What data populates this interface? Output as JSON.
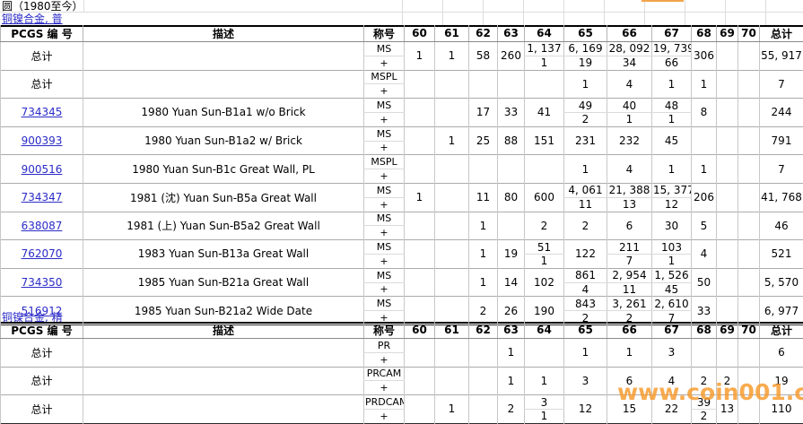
{
  "title": "圆（1980至今）",
  "watermark": "www.coin001.com",
  "colors": {
    "link": "#2b2bc8",
    "watermark": "#f69828",
    "grid": "#c8c8c8",
    "border": "#000000"
  },
  "columns": {
    "pcgs": "PCGS 编 号",
    "description": "描述",
    "designation": "称号",
    "grades": [
      "60",
      "61",
      "62",
      "63",
      "64",
      "65",
      "66",
      "67",
      "68",
      "69",
      "70"
    ],
    "total": "总计"
  },
  "tables": [
    {
      "section": "铜镍合金, 普",
      "rows": [
        {
          "pcgs": "总计",
          "is_link": false,
          "description": "",
          "designations": [
            "MS",
            "+"
          ],
          "cells": {
            "60": [
              "1"
            ],
            "61": [
              "1"
            ],
            "62": [
              "58"
            ],
            "63": [
              "260"
            ],
            "64": [
              "1, 137",
              "1"
            ],
            "65": [
              "6, 169",
              "19"
            ],
            "66": [
              "28, 092",
              "34"
            ],
            "67": [
              "19, 739",
              "66"
            ],
            "68": [
              "306"
            ]
          },
          "total": "55, 917"
        },
        {
          "pcgs": "总计",
          "is_link": false,
          "description": "",
          "designations": [
            "MSPL",
            "+"
          ],
          "cells": {
            "65": [
              "1"
            ],
            "66": [
              "4"
            ],
            "67": [
              "1"
            ],
            "68": [
              "1"
            ]
          },
          "total": "7"
        },
        {
          "pcgs": "734345",
          "is_link": true,
          "description": "1980 Yuan Sun-B1a1 w/o Brick",
          "designations": [
            "MS",
            "+"
          ],
          "cells": {
            "62": [
              "17"
            ],
            "63": [
              "33"
            ],
            "64": [
              "41"
            ],
            "65": [
              "49",
              "2"
            ],
            "66": [
              "40",
              "1"
            ],
            "67": [
              "48",
              "1"
            ],
            "68": [
              "8"
            ]
          },
          "total": "244"
        },
        {
          "pcgs": "900393",
          "is_link": true,
          "description": "1980 Yuan Sun-B1a2 w/ Brick",
          "designations": [
            "MS",
            "+"
          ],
          "cells": {
            "61": [
              "1"
            ],
            "62": [
              "25"
            ],
            "63": [
              "88"
            ],
            "64": [
              "151"
            ],
            "65": [
              "231"
            ],
            "66": [
              "232"
            ],
            "67": [
              "45"
            ]
          },
          "total": "791"
        },
        {
          "pcgs": "900516",
          "is_link": true,
          "description": "1980 Yuan Sun-B1c Great Wall, PL",
          "designations": [
            "MSPL",
            "+"
          ],
          "cells": {
            "65": [
              "1"
            ],
            "66": [
              "4"
            ],
            "67": [
              "1"
            ],
            "68": [
              "1"
            ]
          },
          "total": "7"
        },
        {
          "pcgs": "734347",
          "is_link": true,
          "description": "1981 (沈) Yuan Sun-B5a Great Wall",
          "designations": [
            "MS",
            "+"
          ],
          "cells": {
            "60": [
              "1"
            ],
            "62": [
              "11"
            ],
            "63": [
              "80"
            ],
            "64": [
              "600"
            ],
            "65": [
              "4, 061",
              "11"
            ],
            "66": [
              "21, 388",
              "13"
            ],
            "67": [
              "15, 377",
              "12"
            ],
            "68": [
              "206"
            ]
          },
          "total": "41, 768"
        },
        {
          "pcgs": "638087",
          "is_link": true,
          "description": "1981 (上) Yuan Sun-B5a2 Great Wall",
          "designations": [
            "MS",
            "+"
          ],
          "cells": {
            "62": [
              "1"
            ],
            "64": [
              "2"
            ],
            "65": [
              "2"
            ],
            "66": [
              "6"
            ],
            "67": [
              "30"
            ],
            "68": [
              "5"
            ]
          },
          "total": "46"
        },
        {
          "pcgs": "762070",
          "is_link": true,
          "description": "1983 Yuan Sun-B13a Great Wall",
          "designations": [
            "MS",
            "+"
          ],
          "cells": {
            "62": [
              "1"
            ],
            "63": [
              "19"
            ],
            "64": [
              "51",
              "1"
            ],
            "65": [
              "122"
            ],
            "66": [
              "211",
              "7"
            ],
            "67": [
              "103",
              "1"
            ],
            "68": [
              "4"
            ]
          },
          "total": "521"
        },
        {
          "pcgs": "734350",
          "is_link": true,
          "description": "1985 Yuan Sun-B21a Great Wall",
          "designations": [
            "MS",
            "+"
          ],
          "cells": {
            "62": [
              "1"
            ],
            "63": [
              "14"
            ],
            "64": [
              "102"
            ],
            "65": [
              "861",
              "4"
            ],
            "66": [
              "2, 954",
              "11"
            ],
            "67": [
              "1, 526",
              "45"
            ],
            "68": [
              "50"
            ]
          },
          "total": "5, 570"
        },
        {
          "pcgs": "516912",
          "is_link": true,
          "description": "1985 Yuan Sun-B21a2 Wide Date",
          "designations": [
            "MS",
            "+"
          ],
          "cells": {
            "62": [
              "2"
            ],
            "63": [
              "26"
            ],
            "64": [
              "190"
            ],
            "65": [
              "843",
              "2"
            ],
            "66": [
              "3, 261",
              "2"
            ],
            "67": [
              "2, 610",
              "7"
            ],
            "68": [
              "33"
            ]
          },
          "total": "6, 977"
        }
      ]
    },
    {
      "section": "铜镍合金, 精",
      "rows": [
        {
          "pcgs": "总计",
          "is_link": false,
          "description": "",
          "designations": [
            "PR",
            "+"
          ],
          "cells": {
            "63": [
              "1"
            ],
            "65": [
              "1"
            ],
            "66": [
              "1"
            ],
            "67": [
              "3"
            ]
          },
          "total": "6"
        },
        {
          "pcgs": "总计",
          "is_link": false,
          "description": "",
          "designations": [
            "PRCAM",
            "+"
          ],
          "cells": {
            "63": [
              "1"
            ],
            "64": [
              "1"
            ],
            "65": [
              "3"
            ],
            "66": [
              "6"
            ],
            "67": [
              "4"
            ],
            "68": [
              "2"
            ],
            "69": [
              "2"
            ]
          },
          "total": "19"
        },
        {
          "pcgs": "总计",
          "is_link": false,
          "description": "",
          "designations": [
            "PRDCAM",
            "+"
          ],
          "cells": {
            "61": [
              "1"
            ],
            "63": [
              "2"
            ],
            "64": [
              "3",
              "1"
            ],
            "65": [
              "12"
            ],
            "66": [
              "15"
            ],
            "67": [
              "22"
            ],
            "68": [
              "39",
              "2"
            ],
            "69": [
              "13"
            ]
          },
          "total": "110"
        }
      ]
    }
  ]
}
